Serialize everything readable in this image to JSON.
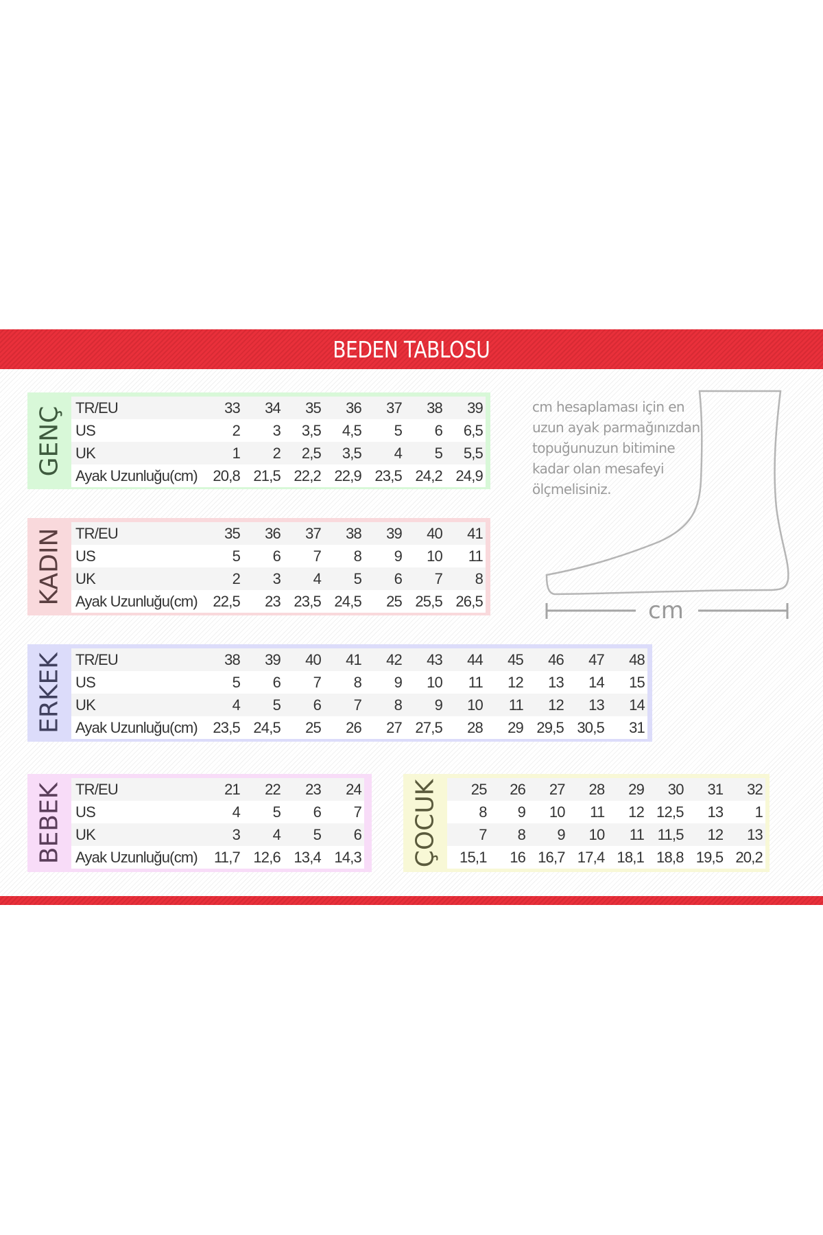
{
  "title": "BEDEN TABLOSU",
  "colors": {
    "header": "#e9303b",
    "genc": "#d8f8d8",
    "kadin": "#f9d9dc",
    "erkek": "#dcdcfa",
    "bebek": "#f8dcf8",
    "cocuk": "#f8f8d6"
  },
  "note": {
    "lines": [
      "cm hesaplaması için en",
      "uzun ayak parmağınızdan",
      "topuğunuzun bitimine",
      "kadar olan mesafeyi",
      "ölçmelisiniz."
    ],
    "ruler_label": "cm"
  },
  "tables": [
    {
      "label": "GENÇ",
      "rows": [
        {
          "name": "TR/EU",
          "values": [
            "33",
            "34",
            "35",
            "36",
            "37",
            "38",
            "39"
          ]
        },
        {
          "name": "US",
          "values": [
            "2",
            "3",
            "3,5",
            "4,5",
            "5",
            "6",
            "6,5"
          ]
        },
        {
          "name": "UK",
          "values": [
            "1",
            "2",
            "2,5",
            "3,5",
            "4",
            "5",
            "5,5"
          ]
        },
        {
          "name": "Ayak Uzunluğu(cm)",
          "values": [
            "20,8",
            "21,5",
            "22,2",
            "22,9",
            "23,5",
            "24,2",
            "24,9"
          ]
        }
      ]
    },
    {
      "label": "KADIN",
      "rows": [
        {
          "name": "TR/EU",
          "values": [
            "35",
            "36",
            "37",
            "38",
            "39",
            "40",
            "41"
          ]
        },
        {
          "name": "US",
          "values": [
            "5",
            "6",
            "7",
            "8",
            "9",
            "10",
            "11"
          ]
        },
        {
          "name": "UK",
          "values": [
            "2",
            "3",
            "4",
            "5",
            "6",
            "7",
            "8"
          ]
        },
        {
          "name": "Ayak Uzunluğu(cm)",
          "values": [
            "22,5",
            "23",
            "23,5",
            "24,5",
            "25",
            "25,5",
            "26,5"
          ]
        }
      ]
    },
    {
      "label": "ERKEK",
      "rows": [
        {
          "name": "TR/EU",
          "values": [
            "38",
            "39",
            "40",
            "41",
            "42",
            "43",
            "44",
            "45",
            "46",
            "47",
            "48"
          ]
        },
        {
          "name": "US",
          "values": [
            "5",
            "6",
            "7",
            "8",
            "9",
            "10",
            "11",
            "12",
            "13",
            "14",
            "15"
          ]
        },
        {
          "name": "UK",
          "values": [
            "4",
            "5",
            "6",
            "7",
            "8",
            "9",
            "10",
            "11",
            "12",
            "13",
            "14"
          ]
        },
        {
          "name": "Ayak Uzunluğu(cm)",
          "values": [
            "23,5",
            "24,5",
            "25",
            "26",
            "27",
            "27,5",
            "28",
            "29",
            "29,5",
            "30,5",
            "31"
          ]
        }
      ]
    },
    {
      "label": "BEBEK",
      "rows": [
        {
          "name": "TR/EU",
          "values": [
            "21",
            "22",
            "23",
            "24"
          ]
        },
        {
          "name": "US",
          "values": [
            "4",
            "5",
            "6",
            "7"
          ]
        },
        {
          "name": "UK",
          "values": [
            "3",
            "4",
            "5",
            "6"
          ]
        },
        {
          "name": "Ayak Uzunluğu(cm)",
          "values": [
            "11,7",
            "12,6",
            "13,4",
            "14,3"
          ]
        }
      ]
    },
    {
      "label": "ÇOCUK",
      "rows": [
        {
          "values": [
            "25",
            "26",
            "27",
            "28",
            "29",
            "30",
            "31",
            "32"
          ]
        },
        {
          "values": [
            "8",
            "9",
            "10",
            "11",
            "12",
            "12,5",
            "13",
            "1"
          ]
        },
        {
          "values": [
            "7",
            "8",
            "9",
            "10",
            "11",
            "11,5",
            "12",
            "13"
          ]
        },
        {
          "values": [
            "15,1",
            "16",
            "16,7",
            "17,4",
            "18,1",
            "18,8",
            "19,5",
            "20,2"
          ]
        }
      ]
    }
  ]
}
